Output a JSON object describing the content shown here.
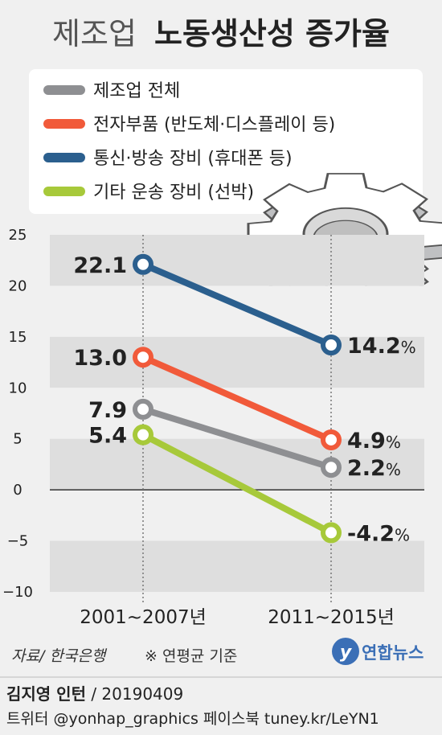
{
  "title": {
    "prefix": "제조업",
    "main": "노동생산성 증가율"
  },
  "legend": [
    {
      "label": "제조업 전체",
      "color": "#8e8f92"
    },
    {
      "label": "전자부품 (반도체·디스플레이 등)",
      "color": "#f15a3a"
    },
    {
      "label": "통신·방송 장비 (휴대폰 등)",
      "color": "#2b5f8e"
    },
    {
      "label": "기타 운송 장비 (선박)",
      "color": "#a7c93a"
    }
  ],
  "chart_data": {
    "type": "line",
    "categories": [
      "2001~2007년",
      "2011~2015년"
    ],
    "series": [
      {
        "name": "통신·방송 장비 (휴대폰 등)",
        "color": "#2b5f8e",
        "values": [
          22.1,
          14.2
        ],
        "labels": [
          "22.1",
          "14.2"
        ]
      },
      {
        "name": "전자부품 (반도체·디스플레이 등)",
        "color": "#f15a3a",
        "values": [
          13.0,
          4.9
        ],
        "labels": [
          "13.0",
          "4.9"
        ]
      },
      {
        "name": "제조업 전체",
        "color": "#8e8f92",
        "values": [
          7.9,
          2.2
        ],
        "labels": [
          "7.9",
          "2.2"
        ]
      },
      {
        "name": "기타 운송 장비 (선박)",
        "color": "#a7c93a",
        "values": [
          5.4,
          -4.2
        ],
        "labels": [
          "5.4",
          "-4.2"
        ]
      }
    ],
    "unit": "%",
    "yticks": [
      "25",
      "20",
      "15",
      "10",
      "5",
      "0",
      "−5",
      "−10"
    ],
    "ytick_values": [
      25,
      20,
      15,
      10,
      5,
      0,
      -5,
      -10
    ],
    "ylim": [
      -10,
      25
    ],
    "grid": "alternating bands"
  },
  "footer": {
    "source": "자료/ 한국은행",
    "note": "※ 연평균 기준",
    "logo": "연합뉴스",
    "author": "김지영 인턴",
    "date": " / 20190409",
    "social": "트위터 @yonhap_graphics  페이스북 tuney.kr/LeYN1"
  }
}
